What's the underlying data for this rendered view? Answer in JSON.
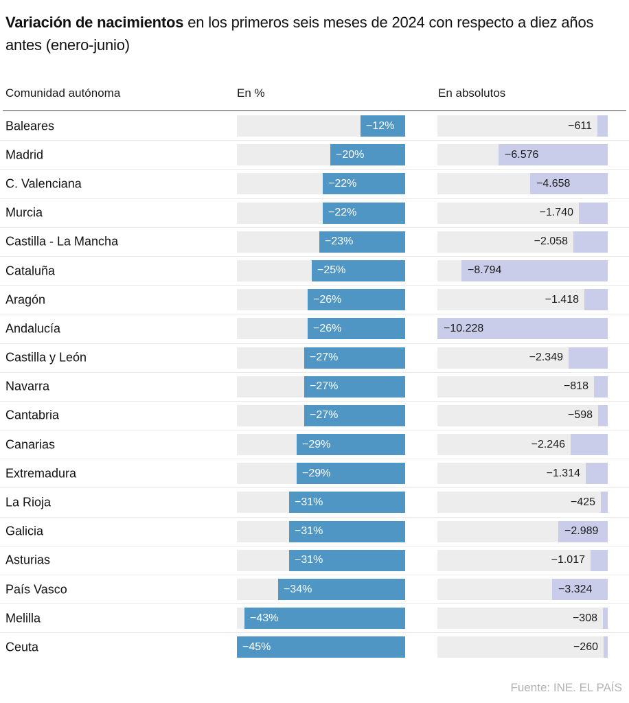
{
  "title": {
    "bold": "Variación de nacimientos",
    "rest": " en los primeros seis meses de 2024 con respecto a diez años antes (enero-junio)"
  },
  "columns": {
    "region": "Comunidad autónoma",
    "percent": "En %",
    "absolute": "En absolutos"
  },
  "footer": {
    "source": "Fuente: INE. EL PAÍS"
  },
  "colors": {
    "percent_bar": "#4f96c4",
    "absolute_bar": "#c9cde9",
    "track": "#ededed",
    "rule": "#9e9e9e",
    "divider": "#e8e8e8",
    "footer_text": "#b2b2b2",
    "text": "#111111",
    "bar_label_light": "#ffffff"
  },
  "chart_data": {
    "type": "bar",
    "orientation": "horizontal",
    "bars_anchored": "right",
    "title": "Variación de nacimientos en los primeros seis meses de 2024 con respecto a diez años antes (enero-junio)",
    "source": "Fuente: INE. EL PAÍS",
    "categories": [
      "Baleares",
      "Madrid",
      "C. Valenciana",
      "Murcia",
      "Castilla - La Mancha",
      "Cataluña",
      "Aragón",
      "Andalucía",
      "Castilla y León",
      "Navarra",
      "Cantabria",
      "Canarias",
      "Extremadura",
      "La Rioja",
      "Galicia",
      "Asturias",
      "País Vasco",
      "Melilla",
      "Ceuta"
    ],
    "series": [
      {
        "name": "En %",
        "values": [
          -12,
          -20,
          -22,
          -22,
          -23,
          -25,
          -26,
          -26,
          -27,
          -27,
          -27,
          -29,
          -29,
          -31,
          -31,
          -31,
          -34,
          -43,
          -45
        ],
        "labels": [
          "−12%",
          "−20%",
          "−22%",
          "−22%",
          "−23%",
          "−25%",
          "−26%",
          "−26%",
          "−27%",
          "−27%",
          "−27%",
          "−29%",
          "−29%",
          "−31%",
          "−31%",
          "−31%",
          "−34%",
          "−43%",
          "−45%"
        ]
      },
      {
        "name": "En absolutos",
        "values": [
          -611,
          -6576,
          -4658,
          -1740,
          -2058,
          -8794,
          -1418,
          -10228,
          -2349,
          -818,
          -598,
          -2246,
          -1314,
          -425,
          -2989,
          -1017,
          -3324,
          -308,
          -260
        ],
        "labels": [
          "−611",
          "−6.576",
          "−4.658",
          "−1.740",
          "−2.058",
          "−8.794",
          "−1.418",
          "−10.228",
          "−2.349",
          "−818",
          "−598",
          "−2.246",
          "−1.314",
          "−425",
          "−2.989",
          "−1.017",
          "−3.324",
          "−308",
          "−260"
        ]
      }
    ],
    "axes": {
      "percent_max_abs": 45,
      "absolute_max_abs": 10228
    },
    "grid": false,
    "legend": false
  }
}
